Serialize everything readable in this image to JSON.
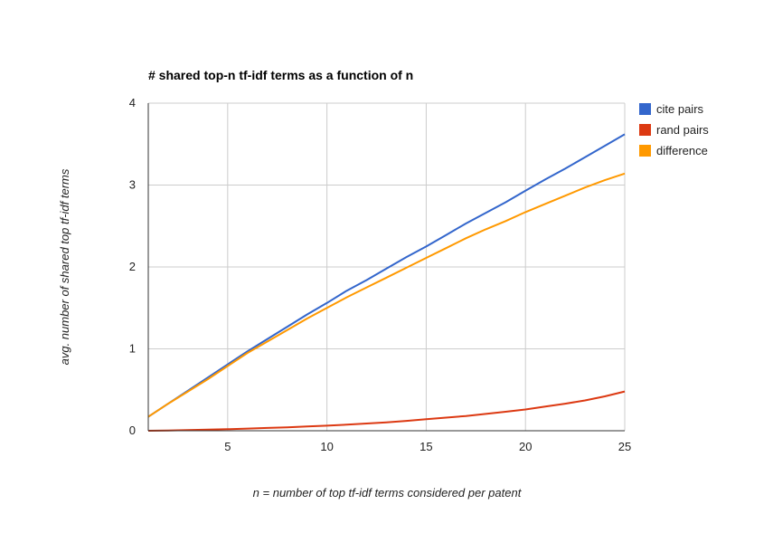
{
  "chart_data": {
    "type": "line",
    "title": "# shared top-n tf-idf terms as a function of n",
    "xlabel": "n = number of top tf-idf terms considered per patent",
    "ylabel": "avg. number of shared top tf-idf terms",
    "xlim": [
      1,
      25
    ],
    "ylim": [
      0,
      4
    ],
    "x_ticks": [
      5,
      10,
      15,
      20,
      25
    ],
    "y_ticks": [
      0,
      1,
      2,
      3,
      4
    ],
    "grid": true,
    "legend_position": "right",
    "x": [
      1,
      2,
      3,
      4,
      5,
      6,
      7,
      8,
      9,
      10,
      11,
      12,
      13,
      14,
      15,
      16,
      17,
      18,
      19,
      20,
      21,
      22,
      23,
      24,
      25
    ],
    "series": [
      {
        "name": "cite pairs",
        "color": "#3366cc",
        "values": [
          0.17,
          0.33,
          0.49,
          0.65,
          0.81,
          0.97,
          1.12,
          1.27,
          1.42,
          1.56,
          1.71,
          1.84,
          1.98,
          2.12,
          2.25,
          2.39,
          2.53,
          2.66,
          2.79,
          2.93,
          3.07,
          3.2,
          3.34,
          3.48,
          3.62
        ]
      },
      {
        "name": "rand pairs",
        "color": "#dc3912",
        "values": [
          0.0,
          0.003,
          0.008,
          0.013,
          0.019,
          0.026,
          0.034,
          0.042,
          0.052,
          0.062,
          0.074,
          0.088,
          0.103,
          0.12,
          0.14,
          0.16,
          0.18,
          0.205,
          0.232,
          0.26,
          0.295,
          0.33,
          0.37,
          0.42,
          0.48
        ]
      },
      {
        "name": "difference",
        "color": "#ff9900",
        "values": [
          0.17,
          0.33,
          0.48,
          0.63,
          0.79,
          0.95,
          1.09,
          1.23,
          1.37,
          1.5,
          1.63,
          1.75,
          1.87,
          1.99,
          2.11,
          2.23,
          2.35,
          2.46,
          2.56,
          2.67,
          2.77,
          2.87,
          2.97,
          3.06,
          3.14
        ]
      }
    ]
  }
}
